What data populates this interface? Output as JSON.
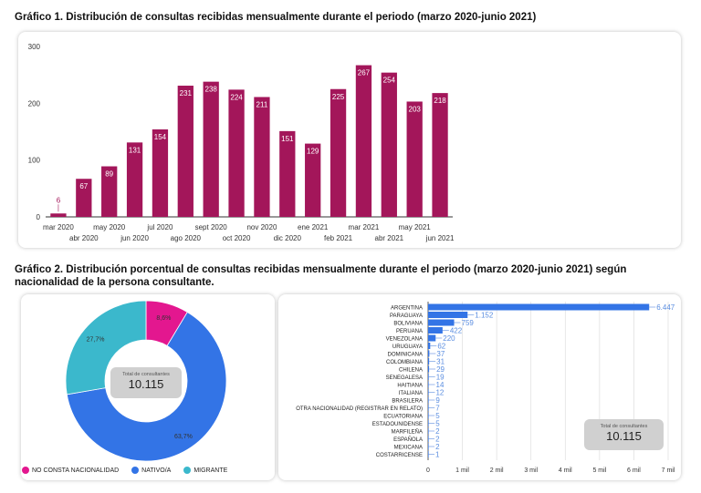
{
  "chart_data": [
    {
      "type": "bar",
      "title": "Gráfico 1. Distribución de consultas recibidas mensualmente durante el periodo (marzo 2020-junio 2021)",
      "categories": [
        "mar 2020",
        "abr 2020",
        "may 2020",
        "jun 2020",
        "jul 2020",
        "ago 2020",
        "sept 2020",
        "oct 2020",
        "nov 2020",
        "dic 2020",
        "ene 2021",
        "feb 2021",
        "mar 2021",
        "abr 2021",
        "may 2021",
        "jun 2021"
      ],
      "values": [
        6,
        67,
        89,
        131,
        154,
        231,
        238,
        224,
        211,
        151,
        129,
        225,
        267,
        254,
        203,
        218
      ],
      "yticks": [
        0,
        100,
        200,
        300
      ],
      "ylim": [
        0,
        300
      ],
      "color": "#a3165a"
    },
    {
      "type": "pie",
      "title": "Gráfico 2. Distribución porcentual de consultas recibidas mensualmente durante el periodo (marzo 2020-junio 2021) según nacionalidad de la persona consultante.",
      "slices": [
        {
          "name": "NO CONSTA NACIONALIDAD",
          "value": 8.6,
          "label": "8,6%",
          "color": "#e3178f"
        },
        {
          "name": "NATIVO/A",
          "value": 63.7,
          "label": "63,7%",
          "color": "#3374e6"
        },
        {
          "name": "MIGRANTE",
          "value": 27.7,
          "label": "27,7%",
          "color": "#3bb8cc"
        }
      ],
      "legend_position": "bottom",
      "total_label": "Total de consultantes",
      "total_value": "10.115"
    },
    {
      "type": "bar",
      "orientation": "horizontal",
      "categories": [
        "ARGENTINA",
        "PARAGUAYA",
        "BOLIVIANA",
        "PERUANA",
        "VENEZOLANA",
        "URUGUAYA",
        "DOMINICANA",
        "COLOMBIANA",
        "CHILENA",
        "SENEGALESA",
        "HAITIANA",
        "ITALIANA",
        "BRASILERA",
        "OTRA NACIONALIDAD (REGISTRAR EN RELATO)",
        "ECUATORIANA",
        "ESTADOUNIDENSE",
        "MARFILEÑA",
        "ESPAÑOLA",
        "MEXICANA",
        "COSTARRICENSE"
      ],
      "values": [
        6447,
        1152,
        759,
        422,
        220,
        62,
        37,
        31,
        29,
        19,
        14,
        12,
        9,
        7,
        5,
        5,
        2,
        2,
        2,
        1
      ],
      "value_labels": [
        "6.447",
        "1.152",
        "759",
        "422",
        "220",
        "62",
        "37",
        "31",
        "29",
        "19",
        "14",
        "12",
        "9",
        "7",
        "5",
        "5",
        "2",
        "2",
        "2",
        "1"
      ],
      "xticks": [
        0,
        1000,
        2000,
        3000,
        4000,
        5000,
        6000,
        7000
      ],
      "xtick_labels": [
        "0",
        "1 mil",
        "2 mil",
        "3 mil",
        "4 mil",
        "5 mil",
        "6 mil",
        "7 mil"
      ],
      "xlim": [
        0,
        7000
      ],
      "grid": true,
      "color": "#3374e6",
      "total_label": "Total de consultantes",
      "total_value": "10.115"
    }
  ]
}
